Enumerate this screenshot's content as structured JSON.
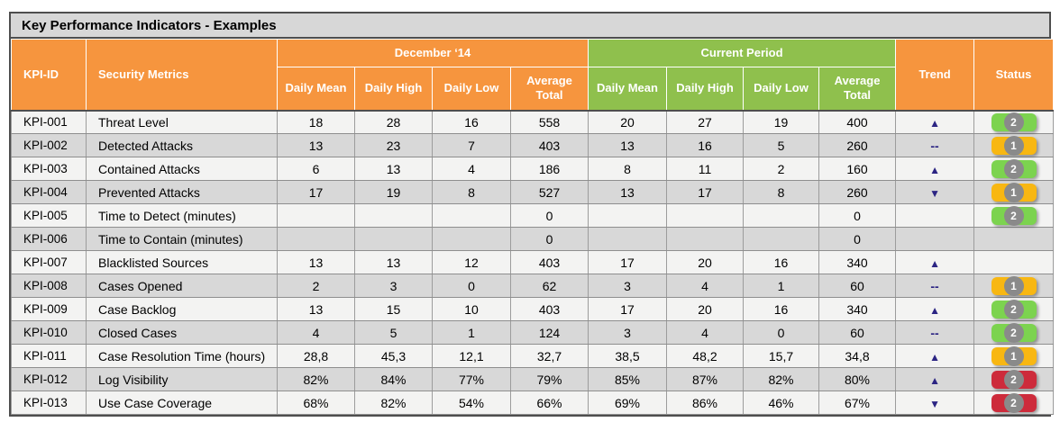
{
  "title": "Key Performance Indicators - Examples",
  "header": {
    "kpi_id": "KPI-ID",
    "metrics": "Security Metrics",
    "period1": "December ‘14",
    "period2": "Current Period",
    "subcols": [
      "Daily Mean",
      "Daily High",
      "Daily Low",
      "Average Total"
    ],
    "trend": "Trend",
    "status": "Status"
  },
  "glyphs": {
    "up": "▲",
    "down": "▼",
    "flat": "--"
  },
  "colors": {
    "header_orange": "#f6953e",
    "header_green": "#8fc04d",
    "title_bar": "#d7d7d7",
    "row_odd": "#f3f3f2",
    "row_even": "#d8d8d8",
    "trend_arrow": "#2b2483",
    "status_green": "#7cd34f",
    "status_amber": "#f8b712",
    "status_red": "#cd2b3b",
    "badge_circle": "#8a8a8a"
  },
  "rows": [
    {
      "id": "KPI-001",
      "metric": "Threat Level",
      "dec": [
        "18",
        "28",
        "16",
        "558"
      ],
      "cur": [
        "20",
        "27",
        "19",
        "400"
      ],
      "trend": "up",
      "status": {
        "level": "green",
        "label": "2"
      }
    },
    {
      "id": "KPI-002",
      "metric": "Detected Attacks",
      "dec": [
        "13",
        "23",
        "7",
        "403"
      ],
      "cur": [
        "13",
        "16",
        "5",
        "260"
      ],
      "trend": "flat",
      "status": {
        "level": "amber",
        "label": "1"
      }
    },
    {
      "id": "KPI-003",
      "metric": "Contained Attacks",
      "dec": [
        "6",
        "13",
        "4",
        "186"
      ],
      "cur": [
        "8",
        "11",
        "2",
        "160"
      ],
      "trend": "up",
      "status": {
        "level": "green",
        "label": "2"
      }
    },
    {
      "id": "KPI-004",
      "metric": "Prevented  Attacks",
      "dec": [
        "17",
        "19",
        "8",
        "527"
      ],
      "cur": [
        "13",
        "17",
        "8",
        "260"
      ],
      "trend": "down",
      "status": {
        "level": "amber",
        "label": "1"
      }
    },
    {
      "id": "KPI-005",
      "metric": "Time to Detect (minutes)",
      "dec": [
        "",
        "",
        "",
        "0"
      ],
      "cur": [
        "",
        "",
        "",
        "0"
      ],
      "trend": "",
      "status": {
        "level": "green",
        "label": "2"
      }
    },
    {
      "id": "KPI-006",
      "metric": "Time to Contain (minutes)",
      "dec": [
        "",
        "",
        "",
        "0"
      ],
      "cur": [
        "",
        "",
        "",
        "0"
      ],
      "trend": "",
      "status": null
    },
    {
      "id": "KPI-007",
      "metric": "Blacklisted Sources",
      "dec": [
        "13",
        "13",
        "12",
        "403"
      ],
      "cur": [
        "17",
        "20",
        "16",
        "340"
      ],
      "trend": "up",
      "status": null
    },
    {
      "id": "KPI-008",
      "metric": "Cases Opened",
      "dec": [
        "2",
        "3",
        "0",
        "62"
      ],
      "cur": [
        "3",
        "4",
        "1",
        "60"
      ],
      "trend": "flat",
      "status": {
        "level": "amber",
        "label": "1"
      }
    },
    {
      "id": "KPI-009",
      "metric": "Case Backlog",
      "dec": [
        "13",
        "15",
        "10",
        "403"
      ],
      "cur": [
        "17",
        "20",
        "16",
        "340"
      ],
      "trend": "up",
      "status": {
        "level": "green",
        "label": "2"
      }
    },
    {
      "id": "KPI-010",
      "metric": "Closed Cases",
      "dec": [
        "4",
        "5",
        "1",
        "124"
      ],
      "cur": [
        "3",
        "4",
        "0",
        "60"
      ],
      "trend": "flat",
      "status": {
        "level": "green",
        "label": "2"
      }
    },
    {
      "id": "KPI-011",
      "metric": "Case Resolution Time (hours)",
      "dec": [
        "28,8",
        "45,3",
        "12,1",
        "32,7"
      ],
      "cur": [
        "38,5",
        "48,2",
        "15,7",
        "34,8"
      ],
      "trend": "up",
      "status": {
        "level": "amber",
        "label": "1"
      }
    },
    {
      "id": "KPI-012",
      "metric": "Log Visibility",
      "dec": [
        "82%",
        "84%",
        "77%",
        "79%"
      ],
      "cur": [
        "85%",
        "87%",
        "82%",
        "80%"
      ],
      "trend": "up",
      "status": {
        "level": "red",
        "label": "2"
      }
    },
    {
      "id": "KPI-013",
      "metric": "Use Case Coverage",
      "dec": [
        "68%",
        "82%",
        "54%",
        "66%"
      ],
      "cur": [
        "69%",
        "86%",
        "46%",
        "67%"
      ],
      "trend": "down",
      "status": {
        "level": "red",
        "label": "2"
      }
    }
  ]
}
